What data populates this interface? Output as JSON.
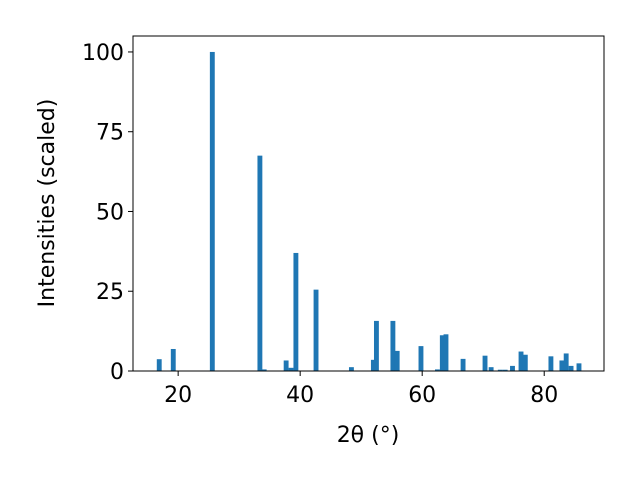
{
  "chart_data": {
    "type": "bar",
    "x_label": "2θ (°)",
    "y_label": "Intensities (scaled)",
    "x": [
      16.9,
      19.2,
      25.6,
      33.4,
      34.1,
      37.7,
      38.5,
      39.3,
      42.6,
      48.4,
      52.0,
      52.5,
      55.2,
      55.9,
      59.8,
      62.5,
      63.3,
      63.9,
      66.7,
      70.3,
      71.3,
      72.8,
      73.6,
      74.8,
      76.2,
      76.9,
      81.1,
      82.9,
      83.6,
      84.4,
      85.7
    ],
    "values": [
      3.7,
      6.9,
      100,
      67.5,
      0.5,
      3.3,
      1,
      37,
      25.5,
      1.2,
      3.5,
      15.7,
      15.7,
      6.3,
      7.8,
      0.5,
      11.2,
      11.5,
      3.8,
      4.8,
      1.2,
      0.4,
      0.4,
      1.6,
      6.1,
      5.1,
      4.6,
      3.3,
      5.5,
      1.6,
      2.4
    ],
    "color": "#1f77b4",
    "xlim": [
      12.6,
      89.8
    ],
    "xticks": [
      20,
      40,
      60,
      80
    ],
    "ylim": [
      0,
      105
    ],
    "yticks": [
      0,
      25,
      50,
      75,
      100
    ]
  }
}
